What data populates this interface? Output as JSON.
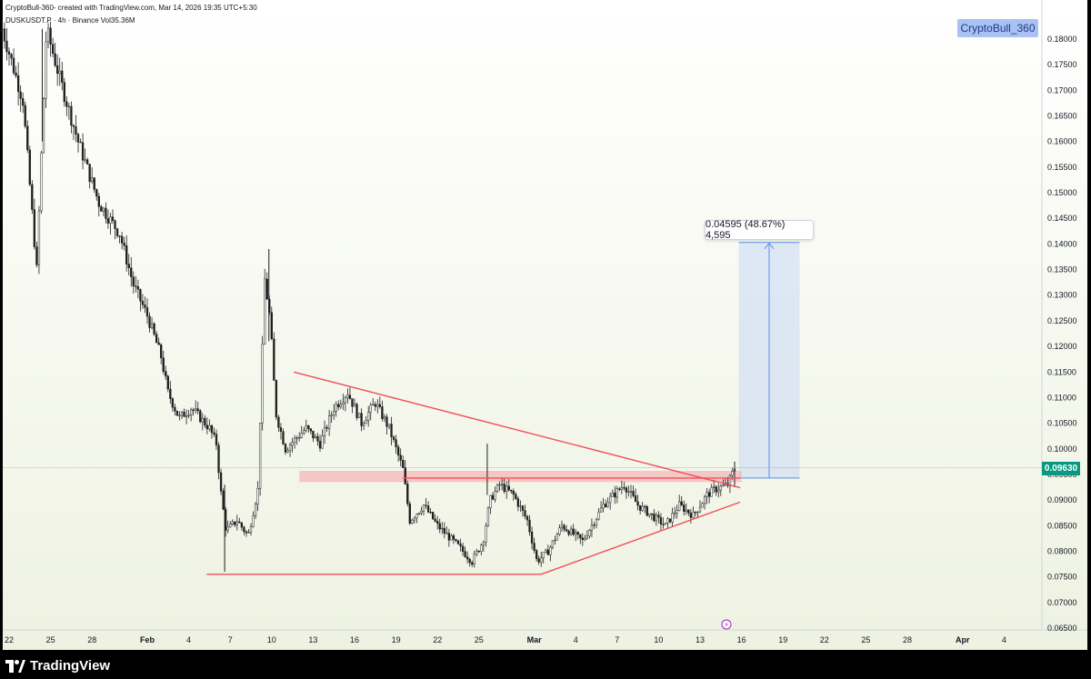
{
  "header": {
    "attribution": "CryptoBull-360- created with TradingView.com, Mar 14, 2026 19:35 UTC+5:30",
    "symbol_line": "DUSKUSDT.P · 4h · Binance  Vol35.36M"
  },
  "watermark_label": "CryptoBull_360",
  "measure_label": "0.04595 (48.67%) 4,595",
  "current_price": "0.09630",
  "brand": "TradingView",
  "colors": {
    "background_top": "#ffffff",
    "background_bottom": "#eef2e1",
    "up_candle": "#1f1f1f",
    "down_candle": "#1f1f1f",
    "trendline": "#f0505a",
    "zone_fill": "#f5a0a8",
    "measure_fill": "#c9d9f5",
    "measure_line": "#5b8def",
    "price_tag": "#089981"
  },
  "chart_data": {
    "type": "candlestick",
    "title": "",
    "xlabel": "",
    "ylabel": "",
    "ylim": [
      0.064,
      0.182
    ],
    "y_ticks": [
      "0.18000",
      "0.17500",
      "0.17000",
      "0.16500",
      "0.16000",
      "0.15500",
      "0.15000",
      "0.14500",
      "0.14000",
      "0.13500",
      "0.13000",
      "0.12500",
      "0.12000",
      "0.11500",
      "0.11000",
      "0.10500",
      "0.10000",
      "0.09500",
      "0.09000",
      "0.08500",
      "0.08000",
      "0.07500",
      "0.07000",
      "0.06500"
    ],
    "x_ticks": [
      "22",
      "25",
      "28",
      "Feb",
      "4",
      "7",
      "10",
      "13",
      "16",
      "19",
      "22",
      "25",
      "Mar",
      "4",
      "7",
      "10",
      "13",
      "16",
      "19",
      "22",
      "25",
      "28",
      "Apr",
      "4"
    ],
    "x_tick_days": [
      -10,
      -7,
      -4,
      0,
      3,
      6,
      9,
      12,
      15,
      18,
      21,
      24,
      28,
      31,
      34,
      37,
      40,
      43,
      46,
      49,
      52,
      55,
      59,
      62
    ],
    "grid": false,
    "close_path": [
      [
        -10.5,
        0.182
      ],
      [
        -9,
        0.168
      ],
      [
        -8,
        0.135
      ],
      [
        -7.3,
        0.182
      ],
      [
        -6.3,
        0.172
      ],
      [
        -5,
        0.16
      ],
      [
        -3.5,
        0.148
      ],
      [
        -2,
        0.142
      ],
      [
        -1,
        0.132
      ],
      [
        0,
        0.126
      ],
      [
        1,
        0.118
      ],
      [
        1.5,
        0.111
      ],
      [
        2.3,
        0.106
      ],
      [
        3.2,
        0.108
      ],
      [
        4.5,
        0.104
      ],
      [
        5,
        0.101
      ],
      [
        5.3,
        0.092
      ],
      [
        5.7,
        0.084
      ],
      [
        6.5,
        0.086
      ],
      [
        7.3,
        0.083
      ],
      [
        8,
        0.092
      ],
      [
        8.5,
        0.133
      ],
      [
        8.9,
        0.125
      ],
      [
        9.3,
        0.107
      ],
      [
        10,
        0.1
      ],
      [
        11.5,
        0.104
      ],
      [
        12.5,
        0.101
      ],
      [
        13.5,
        0.108
      ],
      [
        14.5,
        0.111
      ],
      [
        15.5,
        0.105
      ],
      [
        16.5,
        0.109
      ],
      [
        17.5,
        0.104
      ],
      [
        18.5,
        0.096
      ],
      [
        19,
        0.086
      ],
      [
        20,
        0.089
      ],
      [
        21,
        0.085
      ],
      [
        22.5,
        0.081
      ],
      [
        23.5,
        0.078
      ],
      [
        24.3,
        0.082
      ],
      [
        24.8,
        0.09
      ],
      [
        25.5,
        0.093
      ],
      [
        26.5,
        0.091
      ],
      [
        27.5,
        0.086
      ],
      [
        28.2,
        0.078
      ],
      [
        29,
        0.08
      ],
      [
        30,
        0.085
      ],
      [
        31.5,
        0.082
      ],
      [
        33,
        0.089
      ],
      [
        34.5,
        0.093
      ],
      [
        35.5,
        0.089
      ],
      [
        36.5,
        0.087
      ],
      [
        37.5,
        0.085
      ],
      [
        38.5,
        0.089
      ],
      [
        39.5,
        0.087
      ],
      [
        40.5,
        0.091
      ],
      [
        41,
        0.092
      ],
      [
        42,
        0.093
      ],
      [
        42.5,
        0.0963
      ]
    ],
    "wick_spikes": [
      {
        "day": -7.6,
        "high": 0.182,
        "low": 0.16
      },
      {
        "day": 8.8,
        "high": 0.139,
        "low": 0.121
      },
      {
        "day": 5.6,
        "high": 0.093,
        "low": 0.076
      },
      {
        "day": 24.6,
        "high": 0.101,
        "low": 0.091
      },
      {
        "day": 42.5,
        "high": 0.0975,
        "low": 0.0925
      }
    ],
    "drawings": {
      "descending_trendline": {
        "from": [
          10.6,
          0.115
        ],
        "to": [
          42.9,
          0.0924
        ]
      },
      "ascending_trendline": {
        "from": [
          28.5,
          0.0755
        ],
        "to": [
          42.9,
          0.0896
        ]
      },
      "horizontal_support": {
        "from": [
          4.3,
          0.0755
        ],
        "to": [
          28.5,
          0.0755
        ]
      },
      "breakout_line": {
        "from": [
          18.5,
          0.0943
        ],
        "to": [
          42.9,
          0.0943
        ]
      },
      "resistance_zone": {
        "from": [
          11,
          0.0957
        ],
        "to": [
          43,
          0.0935
        ]
      },
      "measure_box": {
        "from": [
          42.8,
          0.0943
        ],
        "to": [
          47.2,
          0.1403
        ],
        "change": 0.04595,
        "percent": 48.67,
        "ticks": 4595
      }
    },
    "last_price": 0.0963
  }
}
